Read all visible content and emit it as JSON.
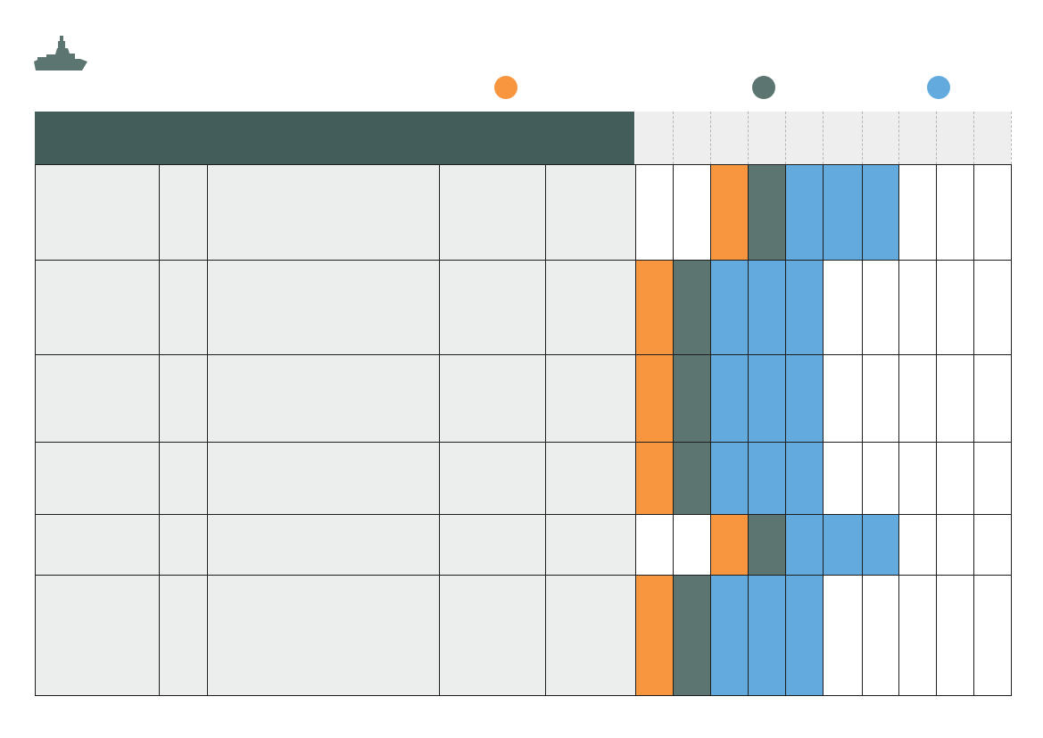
{
  "colors": {
    "orange": "#f7963f",
    "slate": "#5d7570",
    "blue": "#63abdf",
    "header": "#435d5a",
    "row_bg": "#eceded",
    "header_cols_bg": "#eeeeee"
  },
  "logo": {
    "icon": "warship-icon"
  },
  "legend": [
    {
      "color_key": "orange",
      "icon": "legend-dot-orange"
    },
    {
      "color_key": "slate",
      "icon": "legend-dot-slate"
    },
    {
      "color_key": "blue",
      "icon": "legend-dot-blue"
    }
  ],
  "table": {
    "rows": [
      {
        "cells": [
          "",
          "",
          "",
          "",
          ""
        ],
        "schedule": [
          "",
          "",
          "orange",
          "slate",
          "blue",
          "blue",
          "blue",
          "",
          "",
          ""
        ]
      },
      {
        "cells": [
          "",
          "",
          "",
          "",
          ""
        ],
        "schedule": [
          "orange",
          "slate",
          "blue",
          "blue",
          "blue",
          "",
          "",
          "",
          "",
          ""
        ]
      },
      {
        "cells": [
          "",
          "",
          "",
          "",
          ""
        ],
        "schedule": [
          "orange",
          "slate",
          "blue",
          "blue",
          "blue",
          "",
          "",
          "",
          "",
          ""
        ]
      },
      {
        "cells": [
          "",
          "",
          "",
          "",
          ""
        ],
        "schedule": [
          "orange",
          "slate",
          "blue",
          "blue",
          "blue",
          "",
          "",
          "",
          "",
          ""
        ]
      },
      {
        "cells": [
          "",
          "",
          "",
          "",
          ""
        ],
        "schedule": [
          "",
          "",
          "orange",
          "slate",
          "blue",
          "blue",
          "blue",
          "",
          "",
          ""
        ]
      },
      {
        "cells": [
          "",
          "",
          "",
          "",
          ""
        ],
        "schedule": [
          "orange",
          "slate",
          "blue",
          "blue",
          "blue",
          "",
          "",
          "",
          "",
          ""
        ]
      }
    ]
  }
}
